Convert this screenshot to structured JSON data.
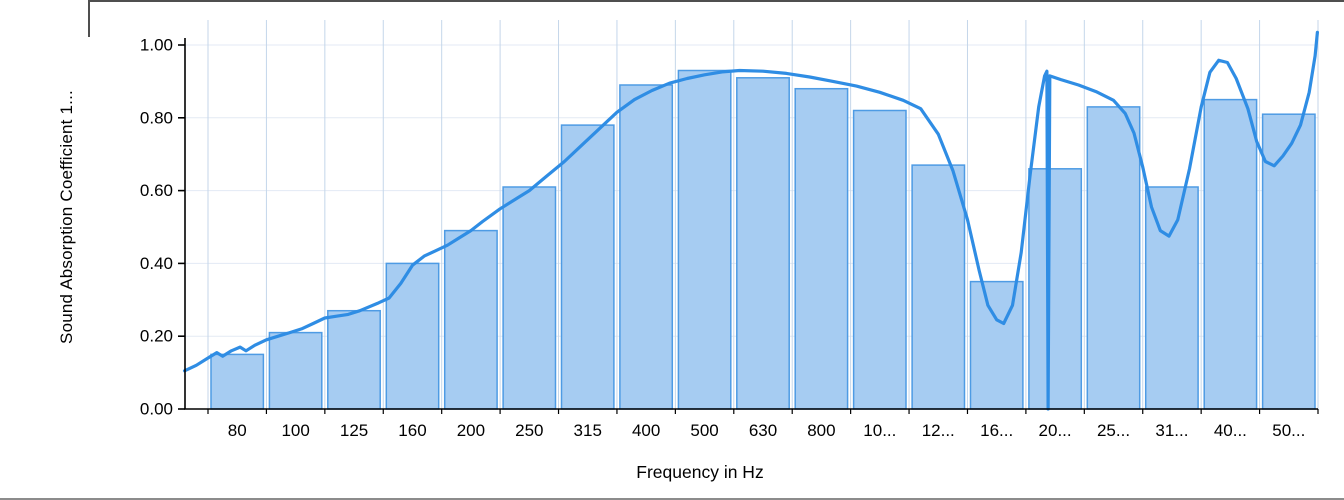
{
  "colors": {
    "bar_fill": "#A6CCF2",
    "bar_stroke": "#4E9BE4",
    "line": "#2F8DE4",
    "grid_v": "#C4D6EA",
    "grid_h": "#E3EAF4",
    "axis": "#000000",
    "text": "#000000",
    "frame_dark": "#4f4f4f",
    "frame_light": "#8c8c8c"
  },
  "y_axis": {
    "tick_labels": [
      "0.00",
      "0.20",
      "0.40",
      "0.60",
      "0.80",
      "1.00"
    ]
  },
  "chart_data": {
    "type": "bar",
    "title": "",
    "xlabel": "Frequency in Hz",
    "ylabel": "Sound Absorption Coefficient 1...",
    "categories": [
      "80",
      "100",
      "125",
      "160",
      "200",
      "250",
      "315",
      "400",
      "500",
      "630",
      "800",
      "10...",
      "12...",
      "16...",
      "20...",
      "25...",
      "31...",
      "40...",
      "50..."
    ],
    "yticks": [
      0,
      0.2,
      0.4,
      0.6,
      0.8,
      1.0
    ],
    "ylim": [
      0,
      1.07
    ],
    "grid": true,
    "legend": "none",
    "series": [
      {
        "name": "Sound Absorption Coefficient (bars)",
        "type": "bar",
        "values": [
          0.15,
          0.21,
          0.27,
          0.4,
          0.49,
          0.61,
          0.78,
          0.89,
          0.93,
          0.91,
          0.88,
          0.82,
          0.67,
          0.35,
          0.66,
          0.83,
          0.61,
          0.85,
          0.81
        ]
      },
      {
        "name": "Sound Absorption Coefficient (curve)",
        "type": "line",
        "x_unit": "category-index",
        "points": [
          [
            -0.9,
            0.105
          ],
          [
            -0.7,
            0.12
          ],
          [
            -0.5,
            0.14
          ],
          [
            -0.35,
            0.155
          ],
          [
            -0.25,
            0.145
          ],
          [
            -0.1,
            0.16
          ],
          [
            0.05,
            0.17
          ],
          [
            0.15,
            0.16
          ],
          [
            0.3,
            0.175
          ],
          [
            0.5,
            0.19
          ],
          [
            0.7,
            0.2
          ],
          [
            0.9,
            0.21
          ],
          [
            1.1,
            0.22
          ],
          [
            1.3,
            0.235
          ],
          [
            1.5,
            0.25
          ],
          [
            1.7,
            0.255
          ],
          [
            1.9,
            0.26
          ],
          [
            2.1,
            0.27
          ],
          [
            2.4,
            0.29
          ],
          [
            2.6,
            0.305
          ],
          [
            2.8,
            0.345
          ],
          [
            3.0,
            0.395
          ],
          [
            3.2,
            0.42
          ],
          [
            3.4,
            0.435
          ],
          [
            3.6,
            0.45
          ],
          [
            3.8,
            0.47
          ],
          [
            4.0,
            0.49
          ],
          [
            4.2,
            0.515
          ],
          [
            4.5,
            0.55
          ],
          [
            4.8,
            0.58
          ],
          [
            5.0,
            0.6
          ],
          [
            5.3,
            0.64
          ],
          [
            5.6,
            0.68
          ],
          [
            5.9,
            0.725
          ],
          [
            6.2,
            0.77
          ],
          [
            6.5,
            0.815
          ],
          [
            6.8,
            0.85
          ],
          [
            7.1,
            0.875
          ],
          [
            7.4,
            0.895
          ],
          [
            7.7,
            0.908
          ],
          [
            8.0,
            0.918
          ],
          [
            8.3,
            0.926
          ],
          [
            8.6,
            0.93
          ],
          [
            9.0,
            0.928
          ],
          [
            9.4,
            0.922
          ],
          [
            9.8,
            0.912
          ],
          [
            10.2,
            0.9
          ],
          [
            10.6,
            0.887
          ],
          [
            11.0,
            0.87
          ],
          [
            11.4,
            0.848
          ],
          [
            11.7,
            0.825
          ],
          [
            12.0,
            0.755
          ],
          [
            12.25,
            0.655
          ],
          [
            12.5,
            0.52
          ],
          [
            12.7,
            0.38
          ],
          [
            12.85,
            0.285
          ],
          [
            13.0,
            0.245
          ],
          [
            13.12,
            0.235
          ],
          [
            13.27,
            0.285
          ],
          [
            13.42,
            0.43
          ],
          [
            13.57,
            0.64
          ],
          [
            13.72,
            0.83
          ],
          [
            13.82,
            0.915
          ],
          [
            13.86,
            0.928
          ],
          [
            13.88,
            0.0
          ],
          [
            13.91,
            0.915
          ],
          [
            14.1,
            0.905
          ],
          [
            14.4,
            0.89
          ],
          [
            14.7,
            0.872
          ],
          [
            15.0,
            0.848
          ],
          [
            15.2,
            0.812
          ],
          [
            15.35,
            0.758
          ],
          [
            15.5,
            0.665
          ],
          [
            15.65,
            0.555
          ],
          [
            15.8,
            0.49
          ],
          [
            15.95,
            0.475
          ],
          [
            16.1,
            0.52
          ],
          [
            16.3,
            0.66
          ],
          [
            16.5,
            0.83
          ],
          [
            16.65,
            0.925
          ],
          [
            16.8,
            0.958
          ],
          [
            16.95,
            0.952
          ],
          [
            17.1,
            0.908
          ],
          [
            17.3,
            0.825
          ],
          [
            17.45,
            0.735
          ],
          [
            17.6,
            0.68
          ],
          [
            17.75,
            0.668
          ],
          [
            17.9,
            0.695
          ],
          [
            18.05,
            0.73
          ],
          [
            18.2,
            0.78
          ],
          [
            18.35,
            0.87
          ],
          [
            18.45,
            0.97
          ],
          [
            18.49,
            1.035
          ]
        ]
      }
    ]
  }
}
